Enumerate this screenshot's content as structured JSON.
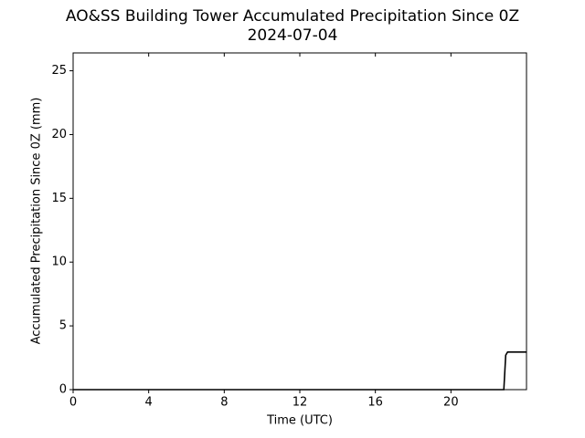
{
  "chart_data": {
    "type": "line",
    "title": "AO&SS Building Tower Accumulated Precipitation Since 0Z",
    "subtitle": "2024-07-04",
    "x_label": "Time (UTC)",
    "y_label": "Accumulated Precipitation Since 0Z (mm)",
    "x": [
      0,
      22.8,
      22.9,
      23.0,
      24
    ],
    "series": [
      {
        "name": "Accumulated Precipitation",
        "color": "#000000",
        "values": [
          0,
          0,
          2.7,
          2.95,
          2.95
        ]
      }
    ],
    "xlim": [
      0,
      24
    ],
    "xticks": [
      0,
      4,
      8,
      12,
      16,
      20
    ],
    "ylim": [
      0,
      26.4
    ],
    "yticks": [
      0,
      5,
      10,
      15,
      20,
      25
    ],
    "grid": false
  }
}
